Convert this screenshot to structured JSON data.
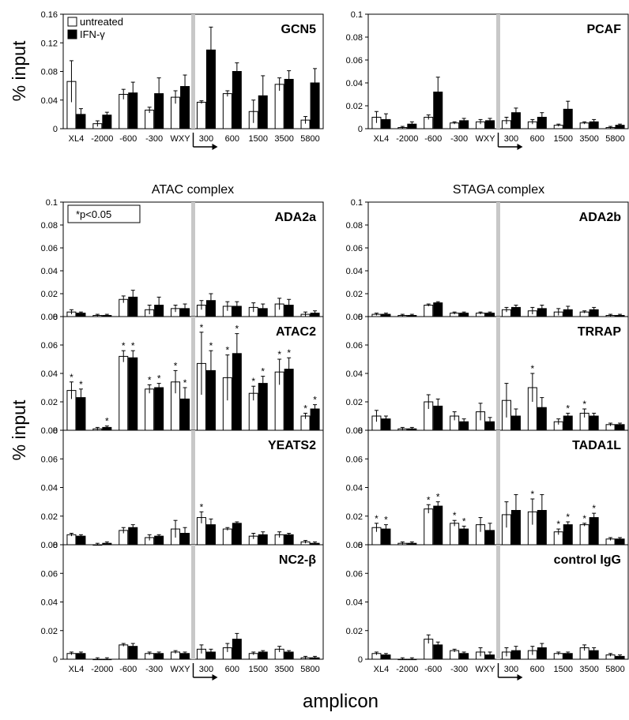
{
  "figure": {
    "ylabel": "% input",
    "xlabel": "amplicon",
    "section_titles": {
      "left": "ATAC complex",
      "right": "STAGA complex"
    },
    "legend": {
      "untreated": "untreated",
      "treated": "IFN-γ"
    },
    "note": "*p<0.05"
  },
  "chart_data": [
    {
      "type": "bar",
      "title": "GCN5",
      "categories": [
        "XL4",
        "-2000",
        "-600",
        "-300",
        "WXY",
        "300",
        "600",
        "1500",
        "3500",
        "5800"
      ],
      "ylim": [
        0,
        0.16
      ],
      "yticks": [
        "0",
        "0.04",
        "0.08",
        "0.12",
        "0.16"
      ],
      "series": [
        {
          "name": "untreated",
          "values": [
            0.066,
            0.007,
            0.048,
            0.026,
            0.044,
            0.037,
            0.049,
            0.024,
            0.062,
            0.012
          ],
          "errors": [
            0.029,
            0.004,
            0.007,
            0.004,
            0.009,
            0.002,
            0.004,
            0.016,
            0.009,
            0.005
          ]
        },
        {
          "name": "IFN-γ",
          "values": [
            0.02,
            0.019,
            0.05,
            0.049,
            0.059,
            0.11,
            0.08,
            0.046,
            0.069,
            0.064
          ],
          "errors": [
            0.008,
            0.004,
            0.015,
            0.022,
            0.016,
            0.032,
            0.012,
            0.028,
            0.012,
            0.02
          ]
        }
      ],
      "significant_untreated": [],
      "significant_treated": []
    },
    {
      "type": "bar",
      "title": "PCAF",
      "categories": [
        "XL4",
        "-2000",
        "-600",
        "-300",
        "WXY",
        "300",
        "600",
        "1500",
        "3500",
        "5800"
      ],
      "ylim": [
        0,
        0.1
      ],
      "yticks": [
        "0",
        "0.02",
        "0.04",
        "0.06",
        "0.08",
        "0.1"
      ],
      "series": [
        {
          "name": "untreated",
          "values": [
            0.01,
            0.001,
            0.01,
            0.005,
            0.006,
            0.007,
            0.006,
            0.003,
            0.005,
            0.001
          ],
          "errors": [
            0.005,
            0.001,
            0.002,
            0.001,
            0.002,
            0.003,
            0.002,
            0.001,
            0.001,
            0.001
          ]
        },
        {
          "name": "IFN-γ",
          "values": [
            0.008,
            0.004,
            0.032,
            0.007,
            0.007,
            0.014,
            0.01,
            0.017,
            0.006,
            0.003
          ],
          "errors": [
            0.005,
            0.002,
            0.013,
            0.002,
            0.002,
            0.004,
            0.004,
            0.007,
            0.002,
            0.001
          ]
        }
      ],
      "significant_untreated": [],
      "significant_treated": []
    },
    {
      "type": "bar",
      "title": "ADA2a",
      "categories": [
        "XL4",
        "-2000",
        "-600",
        "-300",
        "WXY",
        "300",
        "600",
        "1500",
        "3500",
        "5800"
      ],
      "ylim": [
        0,
        0.1
      ],
      "yticks": [
        "0",
        "0.02",
        "0.04",
        "0.06",
        "0.08",
        "0.1"
      ],
      "series": [
        {
          "name": "untreated",
          "values": [
            0.004,
            0.001,
            0.015,
            0.006,
            0.007,
            0.01,
            0.009,
            0.008,
            0.011,
            0.002
          ],
          "errors": [
            0.002,
            0.001,
            0.003,
            0.004,
            0.003,
            0.004,
            0.004,
            0.004,
            0.005,
            0.002
          ]
        },
        {
          "name": "IFN-γ",
          "values": [
            0.003,
            0.001,
            0.017,
            0.01,
            0.007,
            0.014,
            0.009,
            0.007,
            0.01,
            0.003
          ],
          "errors": [
            0.001,
            0.001,
            0.006,
            0.007,
            0.004,
            0.006,
            0.004,
            0.004,
            0.005,
            0.002
          ]
        }
      ],
      "significant_untreated": [],
      "significant_treated": []
    },
    {
      "type": "bar",
      "title": "ADA2b",
      "categories": [
        "XL4",
        "-2000",
        "-600",
        "-300",
        "WXY",
        "300",
        "600",
        "1500",
        "3500",
        "5800"
      ],
      "ylim": [
        0,
        0.1
      ],
      "yticks": [
        "0",
        "0.02",
        "0.04",
        "0.06",
        "0.08",
        "0.1"
      ],
      "series": [
        {
          "name": "untreated",
          "values": [
            0.002,
            0.001,
            0.01,
            0.003,
            0.003,
            0.006,
            0.005,
            0.004,
            0.004,
            0.001
          ],
          "errors": [
            0.001,
            0.001,
            0.001,
            0.001,
            0.001,
            0.002,
            0.003,
            0.003,
            0.001,
            0.001
          ]
        },
        {
          "name": "IFN-γ",
          "values": [
            0.002,
            0.001,
            0.012,
            0.003,
            0.003,
            0.008,
            0.007,
            0.006,
            0.006,
            0.001
          ],
          "errors": [
            0.001,
            0.001,
            0.001,
            0.001,
            0.001,
            0.002,
            0.003,
            0.003,
            0.002,
            0.001
          ]
        }
      ],
      "significant_untreated": [],
      "significant_treated": []
    },
    {
      "type": "bar",
      "title": "ATAC2",
      "categories": [
        "XL4",
        "-2000",
        "-600",
        "-300",
        "WXY",
        "300",
        "600",
        "1500",
        "3500",
        "5800"
      ],
      "ylim": [
        0,
        0.08
      ],
      "yticks": [
        "0",
        "0.02",
        "0.04",
        "0.06",
        "0.08"
      ],
      "series": [
        {
          "name": "untreated",
          "values": [
            0.028,
            0.001,
            0.052,
            0.029,
            0.034,
            0.047,
            0.037,
            0.026,
            0.041,
            0.01
          ],
          "errors": [
            0.006,
            0.001,
            0.004,
            0.003,
            0.008,
            0.022,
            0.016,
            0.005,
            0.009,
            0.002
          ]
        },
        {
          "name": "IFN-γ",
          "values": [
            0.023,
            0.002,
            0.051,
            0.03,
            0.022,
            0.042,
            0.054,
            0.033,
            0.043,
            0.015
          ],
          "errors": [
            0.006,
            0.001,
            0.005,
            0.003,
            0.008,
            0.014,
            0.014,
            0.005,
            0.008,
            0.003
          ]
        }
      ],
      "significant_untreated": [
        0,
        2,
        3,
        4,
        5,
        6,
        7,
        8,
        9
      ],
      "significant_treated": [
        0,
        1,
        2,
        3,
        4,
        5,
        6,
        7,
        8,
        9
      ]
    },
    {
      "type": "bar",
      "title": "TRRAP",
      "categories": [
        "XL4",
        "-2000",
        "-600",
        "-300",
        "WXY",
        "300",
        "600",
        "1500",
        "3500",
        "5800"
      ],
      "ylim": [
        0,
        0.08
      ],
      "yticks": [
        "0",
        "0.02",
        "0.04",
        "0.06",
        "0.08"
      ],
      "series": [
        {
          "name": "untreated",
          "values": [
            0.01,
            0.001,
            0.02,
            0.01,
            0.013,
            0.021,
            0.03,
            0.006,
            0.012,
            0.004
          ],
          "errors": [
            0.004,
            0.001,
            0.005,
            0.003,
            0.006,
            0.012,
            0.01,
            0.002,
            0.003,
            0.001
          ]
        },
        {
          "name": "IFN-γ",
          "values": [
            0.008,
            0.001,
            0.017,
            0.006,
            0.006,
            0.01,
            0.016,
            0.01,
            0.01,
            0.004
          ],
          "errors": [
            0.002,
            0.001,
            0.005,
            0.002,
            0.003,
            0.005,
            0.007,
            0.002,
            0.002,
            0.001
          ]
        }
      ],
      "significant_untreated": [
        6,
        8
      ],
      "significant_treated": [
        7
      ]
    },
    {
      "type": "bar",
      "title": "YEATS2",
      "categories": [
        "XL4",
        "-2000",
        "-600",
        "-300",
        "WXY",
        "300",
        "600",
        "1500",
        "3500",
        "5800"
      ],
      "ylim": [
        0,
        0.08
      ],
      "yticks": [
        "0",
        "0.02",
        "0.04",
        "0.06",
        "0.08"
      ],
      "series": [
        {
          "name": "untreated",
          "values": [
            0.007,
            0.0,
            0.01,
            0.005,
            0.011,
            0.019,
            0.011,
            0.006,
            0.007,
            0.002
          ],
          "errors": [
            0.001,
            0.001,
            0.002,
            0.002,
            0.006,
            0.004,
            0.001,
            0.002,
            0.002,
            0.001
          ]
        },
        {
          "name": "IFN-γ",
          "values": [
            0.006,
            0.001,
            0.012,
            0.006,
            0.008,
            0.014,
            0.015,
            0.007,
            0.007,
            0.001
          ],
          "errors": [
            0.001,
            0.001,
            0.002,
            0.001,
            0.004,
            0.004,
            0.001,
            0.002,
            0.001,
            0.001
          ]
        }
      ],
      "significant_untreated": [
        5
      ],
      "significant_treated": []
    },
    {
      "type": "bar",
      "title": "TADA1L",
      "categories": [
        "XL4",
        "-2000",
        "-600",
        "-300",
        "WXY",
        "300",
        "600",
        "1500",
        "3500",
        "5800"
      ],
      "ylim": [
        0,
        0.08
      ],
      "yticks": [
        "0",
        "0.02",
        "0.04",
        "0.06",
        "0.08"
      ],
      "series": [
        {
          "name": "untreated",
          "values": [
            0.012,
            0.001,
            0.025,
            0.015,
            0.014,
            0.021,
            0.023,
            0.009,
            0.014,
            0.004
          ],
          "errors": [
            0.003,
            0.001,
            0.003,
            0.002,
            0.005,
            0.009,
            0.009,
            0.002,
            0.001,
            0.001
          ]
        },
        {
          "name": "IFN-γ",
          "values": [
            0.011,
            0.001,
            0.027,
            0.011,
            0.01,
            0.024,
            0.024,
            0.014,
            0.019,
            0.004
          ],
          "errors": [
            0.003,
            0.001,
            0.003,
            0.002,
            0.005,
            0.011,
            0.011,
            0.002,
            0.003,
            0.001
          ]
        }
      ],
      "significant_untreated": [
        0,
        2,
        3,
        6,
        7,
        8
      ],
      "significant_treated": [
        0,
        2,
        3,
        7,
        8
      ]
    },
    {
      "type": "bar",
      "title": "NC2-β",
      "categories": [
        "XL4",
        "-2000",
        "-600",
        "-300",
        "WXY",
        "300",
        "600",
        "1500",
        "3500",
        "5800"
      ],
      "ylim": [
        0,
        0.08
      ],
      "yticks": [
        "0",
        "0.02",
        "0.04",
        "0.06",
        "0.08"
      ],
      "series": [
        {
          "name": "untreated",
          "values": [
            0.004,
            0.0,
            0.01,
            0.004,
            0.005,
            0.007,
            0.008,
            0.004,
            0.007,
            0.001
          ],
          "errors": [
            0.001,
            0.001,
            0.001,
            0.001,
            0.001,
            0.003,
            0.003,
            0.001,
            0.002,
            0.001
          ]
        },
        {
          "name": "IFN-γ",
          "values": [
            0.004,
            0.0,
            0.009,
            0.004,
            0.004,
            0.005,
            0.014,
            0.005,
            0.005,
            0.001
          ],
          "errors": [
            0.001,
            0.001,
            0.002,
            0.001,
            0.001,
            0.002,
            0.004,
            0.001,
            0.001,
            0.001
          ]
        }
      ],
      "significant_untreated": [],
      "significant_treated": []
    },
    {
      "type": "bar",
      "title": "control IgG",
      "categories": [
        "XL4",
        "-2000",
        "-600",
        "-300",
        "WXY",
        "300",
        "600",
        "1500",
        "3500",
        "5800"
      ],
      "ylim": [
        0,
        0.08
      ],
      "yticks": [
        "0",
        "0.02",
        "0.04",
        "0.06",
        "0.08"
      ],
      "series": [
        {
          "name": "untreated",
          "values": [
            0.004,
            0.0,
            0.014,
            0.006,
            0.005,
            0.005,
            0.006,
            0.004,
            0.008,
            0.003
          ],
          "errors": [
            0.001,
            0.001,
            0.003,
            0.001,
            0.003,
            0.003,
            0.003,
            0.001,
            0.002,
            0.001
          ]
        },
        {
          "name": "IFN-γ",
          "values": [
            0.003,
            0.0,
            0.01,
            0.004,
            0.003,
            0.006,
            0.008,
            0.004,
            0.006,
            0.002
          ],
          "errors": [
            0.001,
            0.001,
            0.002,
            0.001,
            0.002,
            0.003,
            0.003,
            0.001,
            0.002,
            0.001
          ]
        }
      ],
      "significant_untreated": [],
      "significant_treated": []
    }
  ]
}
